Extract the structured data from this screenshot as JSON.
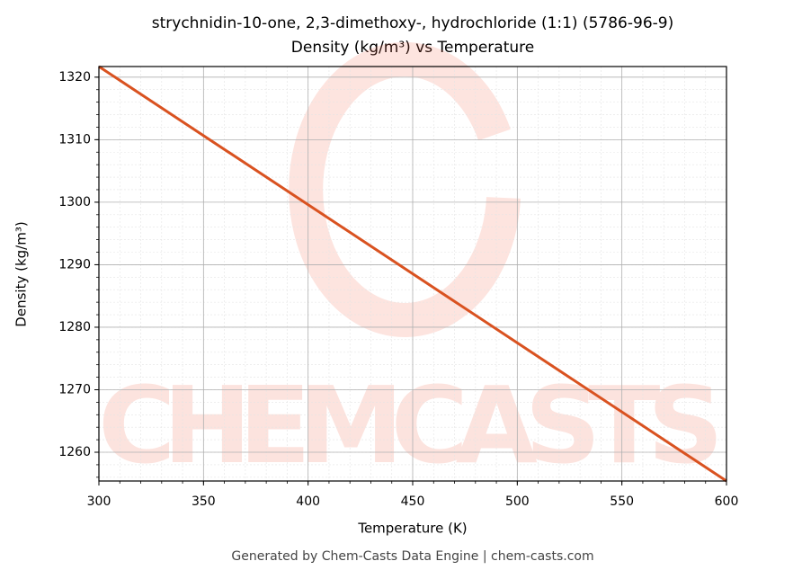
{
  "chart_data": {
    "type": "line",
    "title": "strychnidin-10-one, 2,3-dimethoxy-, hydrochloride (1:1) (5786-96-9)",
    "subtitle": "Density (kg/m³) vs Temperature",
    "x_label": "Temperature (K)",
    "y_label": "Density (kg/m³)",
    "x": [
      300,
      600
    ],
    "series": [
      {
        "name": "Density",
        "color": "#d95220",
        "values": [
          1321.7,
          1255.4
        ]
      }
    ],
    "xlim": [
      300,
      600
    ],
    "xticks": [
      300,
      350,
      400,
      450,
      500,
      550,
      600
    ],
    "ylim": [
      1255.4,
      1321.7
    ],
    "yticks": [
      1260,
      1270,
      1280,
      1290,
      1300,
      1310,
      1320
    ],
    "grid": true,
    "minor_grid": true,
    "watermark": "CHEMCASTS",
    "footer": "Generated by Chem-Casts Data Engine | chem-casts.com"
  }
}
